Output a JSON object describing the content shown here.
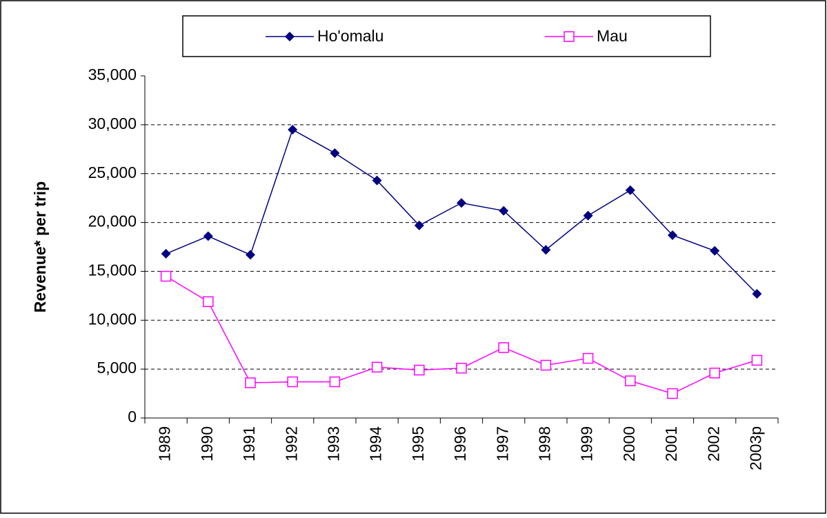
{
  "chart_data": {
    "type": "line",
    "y_label": "Revenue* per trip",
    "categories": [
      "1989",
      "1990",
      "1991",
      "1992",
      "1993",
      "1994",
      "1995",
      "1996",
      "1997",
      "1998",
      "1999",
      "2000",
      "2001",
      "2002",
      "2003p"
    ],
    "series": [
      {
        "name": "Ho'omalu",
        "color": "#000080",
        "marker": "diamond",
        "values": [
          16800,
          18600,
          16700,
          29500,
          27100,
          24300,
          19700,
          22000,
          21200,
          17200,
          20700,
          23300,
          18700,
          17100,
          12700
        ]
      },
      {
        "name": "Mau",
        "color": "#ff00ff",
        "marker": "square",
        "values": [
          14500,
          11900,
          3600,
          3700,
          3700,
          5200,
          4900,
          5100,
          7200,
          5400,
          6100,
          3800,
          2500,
          4600,
          5900
        ]
      }
    ],
    "ylim": [
      0,
      35000
    ],
    "yticks": [
      0,
      {
        "value": 5000,
        "label": "5,000"
      },
      {
        "value": 10000,
        "label": "10,000"
      },
      {
        "value": 15000,
        "label": "15,000"
      },
      {
        "value": 20000,
        "label": "20,000"
      },
      {
        "value": 25000,
        "label": "25,000"
      },
      {
        "value": 30000,
        "label": "30,000"
      },
      {
        "value": 35000,
        "label": "35,000"
      }
    ],
    "grid": true
  }
}
